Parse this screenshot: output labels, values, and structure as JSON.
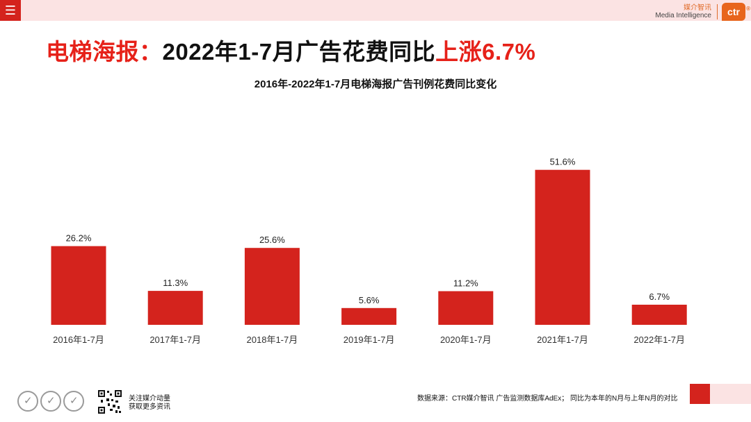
{
  "header": {
    "menu_icon": "menu-icon",
    "brand_cn": "媒介智讯",
    "brand_en": "Media Intelligence",
    "logo_text": "ctr",
    "logo_reg": "®",
    "accent_color": "#d4231d",
    "band_color": "#fbe3e3"
  },
  "headline": {
    "part1": "电梯海报：",
    "part2": "2022年1-7月广告花费同比",
    "part3": "上涨6.7%"
  },
  "chart_data": {
    "type": "bar",
    "title": "2016年-2022年1-7月电梯海报广告刊例花费同比变化",
    "categories": [
      "2016年1-7月",
      "2017年1-7月",
      "2018年1-7月",
      "2019年1-7月",
      "2020年1-7月",
      "2021年1-7月",
      "2022年1-7月"
    ],
    "values": [
      26.2,
      11.3,
      25.6,
      5.6,
      11.2,
      51.6,
      6.7
    ],
    "labels": [
      "26.2%",
      "11.3%",
      "25.6%",
      "5.6%",
      "11.2%",
      "51.6%",
      "6.7%"
    ],
    "unit": "%",
    "ylim": [
      0,
      55
    ],
    "bar_color": "#d4231d",
    "grid": false,
    "xlabel": "",
    "ylabel": ""
  },
  "footer": {
    "qr_icon": "qr-code-icon",
    "follow_line1": "关注媒介动量",
    "follow_line2": "获取更多资讯",
    "source": "数据来源：CTR媒介智讯 广告监测数据库AdEx；  同比为本年的N月与上年N月的对比"
  }
}
